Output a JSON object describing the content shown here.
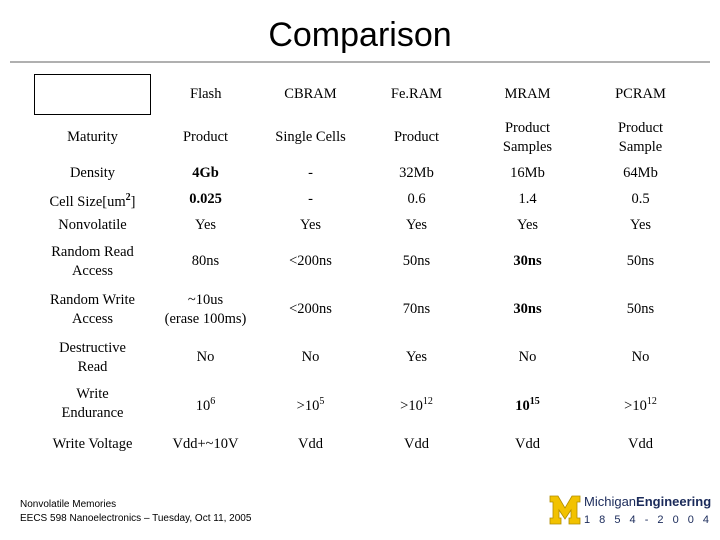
{
  "title": "Comparison",
  "columns": [
    "Flash",
    "CBRAM",
    "Fe.RAM",
    "MRAM",
    "PCRAM"
  ],
  "rows": [
    {
      "label": [
        "Maturity"
      ],
      "cells": [
        [
          "Product"
        ],
        [
          "Single Cells"
        ],
        [
          "Product"
        ],
        [
          "Product",
          "Samples"
        ],
        [
          "Product",
          "Sample"
        ]
      ]
    },
    {
      "label": [
        "Density"
      ],
      "cells": [
        [
          "4Gb"
        ],
        [
          "-"
        ],
        [
          "32Mb"
        ],
        [
          "16Mb"
        ],
        [
          "64Mb"
        ]
      ],
      "bold": [
        0
      ]
    },
    {
      "label": [
        "Cell Size[um2]"
      ],
      "cells": [
        [
          "0.025"
        ],
        [
          "-"
        ],
        [
          "0.6"
        ],
        [
          "1.4"
        ],
        [
          "0.5"
        ]
      ],
      "bold": [
        0
      ]
    },
    {
      "label": [
        "Nonvolatile"
      ],
      "cells": [
        [
          "Yes"
        ],
        [
          "Yes"
        ],
        [
          "Yes"
        ],
        [
          "Yes"
        ],
        [
          "Yes"
        ]
      ]
    },
    {
      "label": [
        "Random Read",
        "Access"
      ],
      "cells": [
        [
          "80ns"
        ],
        [
          "<200ns"
        ],
        [
          "50ns"
        ],
        [
          "30ns"
        ],
        [
          "50ns"
        ]
      ],
      "bold": [
        3
      ]
    },
    {
      "label": [
        "Random Write",
        "Access"
      ],
      "cells": [
        [
          "~10us",
          "(erase 100ms)"
        ],
        [
          "<200ns"
        ],
        [
          "70ns"
        ],
        [
          "30ns"
        ],
        [
          "50ns"
        ]
      ],
      "bold": [
        3
      ]
    },
    {
      "label": [
        "Destructive",
        "Read"
      ],
      "cells": [
        [
          "No"
        ],
        [
          "No"
        ],
        [
          "Yes"
        ],
        [
          "No"
        ],
        [
          "No"
        ]
      ]
    },
    {
      "label": [
        "Write",
        "Endurance"
      ],
      "cells": [
        [
          "106"
        ],
        [
          ">105"
        ],
        [
          ">1012"
        ],
        [
          "1015"
        ],
        [
          ">1012"
        ]
      ],
      "bold": [
        3
      ]
    },
    {
      "label": [
        "Write Voltage"
      ],
      "cells": [
        [
          "Vdd+~10V"
        ],
        [
          "Vdd"
        ],
        [
          "Vdd"
        ],
        [
          "Vdd"
        ],
        [
          "Vdd"
        ]
      ]
    }
  ],
  "footer": {
    "line1": "Nonvolatile Memories",
    "line2": "EECS 598 Nanoelectronics – Tuesday, Oct 11, 2005"
  },
  "logo": {
    "text_a": "Michigan",
    "text_b": "Engineering",
    "years": "1 8 5 4 - 2 0 0 4",
    "colors": {
      "gold": "#f2c200",
      "navy": "#1a2a5a"
    }
  }
}
